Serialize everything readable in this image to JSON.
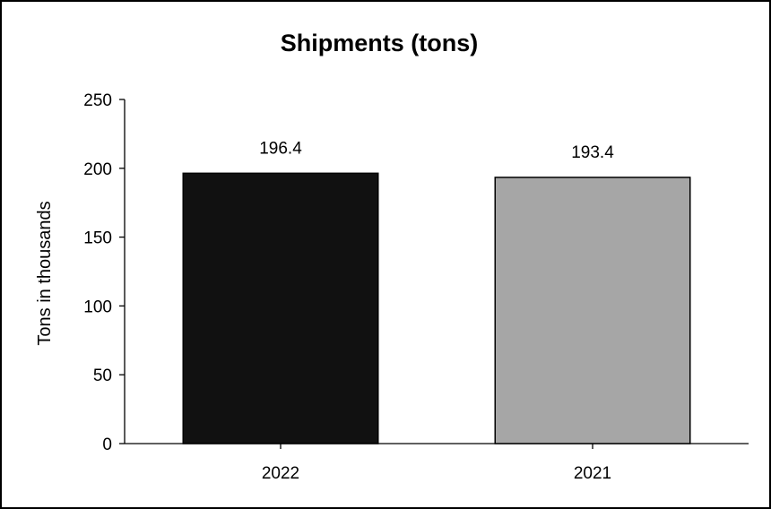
{
  "chart_data": {
    "type": "bar",
    "title": "Shipments (tons)",
    "xlabel": "",
    "ylabel": "Tons in thousands",
    "categories": [
      "2022",
      "2021"
    ],
    "values": [
      196.4,
      193.4
    ],
    "data_labels": [
      "196.4",
      "193.4"
    ],
    "bar_colors": [
      "#111111",
      "#a6a6a6"
    ],
    "ylim": [
      0,
      250
    ],
    "yticks": [
      0,
      50,
      100,
      150,
      200,
      250
    ],
    "ytick_labels": [
      "0",
      "50",
      "100",
      "150",
      "200",
      "250"
    ],
    "grid": false,
    "legend": "none"
  }
}
